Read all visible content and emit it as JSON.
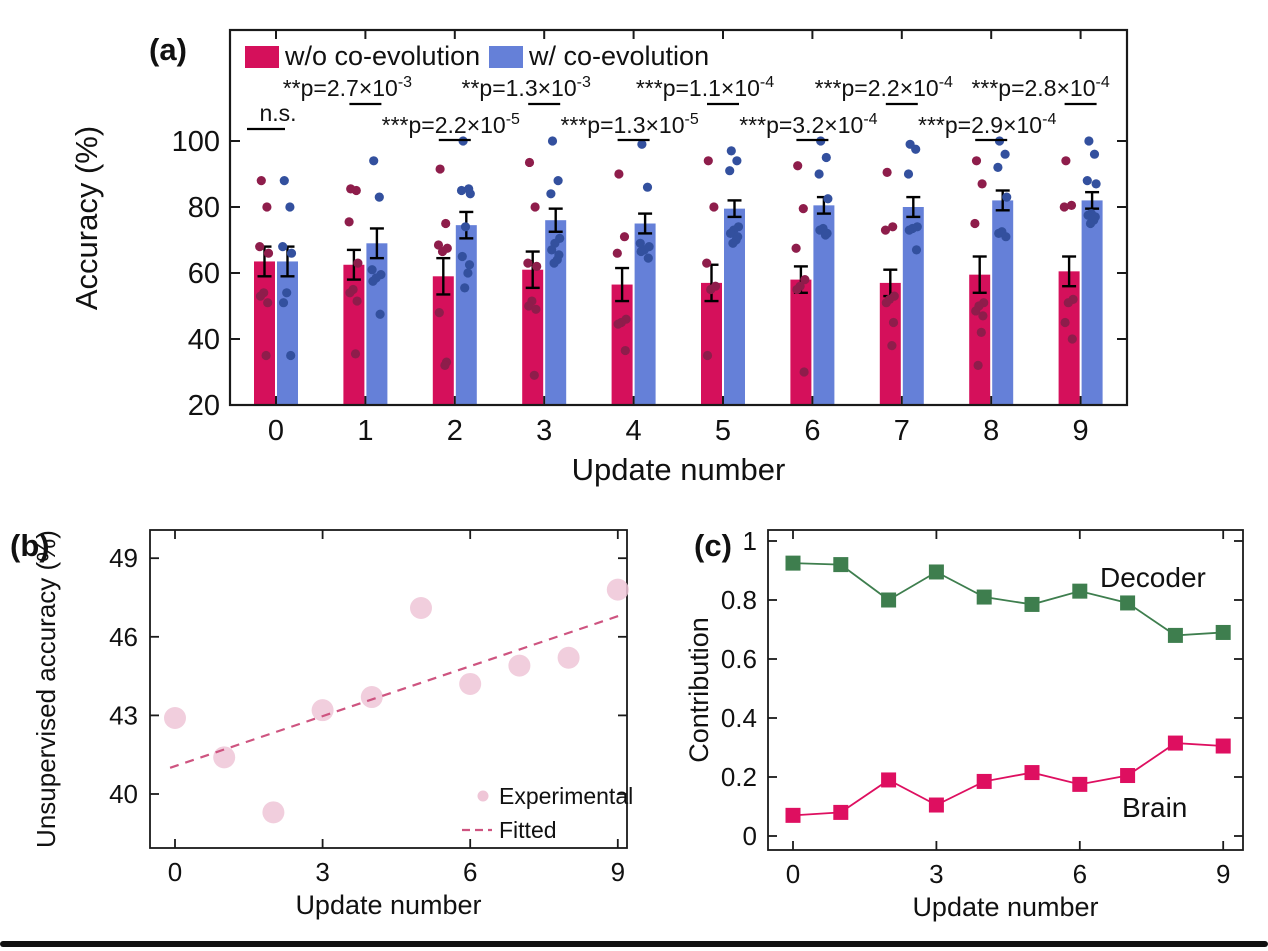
{
  "figure": {
    "panel_a_letter": "(a)",
    "panel_b_letter": "(b)",
    "panel_c_letter": "(c)"
  },
  "colors": {
    "bar_red": "#D5105B",
    "bar_blue": "#6580D8",
    "dot_red": "#8E1D4B",
    "dot_blue": "#33509E",
    "pink_point": "#EFC6D7",
    "fit_line": "#CE5480",
    "green": "#3E7E4E",
    "line_red": "#DE0F60",
    "axis": "#1a1a1a"
  },
  "chart_data": [
    {
      "id": "panel-a",
      "type": "bar",
      "xlabel": "Update number",
      "ylabel": "Accuracy (%)",
      "categories": [
        0,
        1,
        2,
        3,
        4,
        5,
        6,
        7,
        8,
        9
      ],
      "yticks": [
        20,
        40,
        60,
        80,
        100
      ],
      "ylim": [
        20,
        133
      ],
      "grid": false,
      "legend_position": "top-left-inside",
      "series": [
        {
          "name": "w/o co-evolution",
          "means": [
            63.5,
            62.5,
            59,
            61,
            56.5,
            57,
            58,
            57,
            59.5,
            60.5
          ],
          "errors": [
            4.5,
            4.5,
            5.5,
            5.5,
            5,
            5.5,
            4,
            4,
            5.5,
            4.5
          ],
          "points": [
            [
              88,
              80,
              68,
              66,
              54,
              53,
              51,
              35
            ],
            [
              85.5,
              85,
              75.5,
              63,
              55,
              54,
              51.5,
              35.5
            ],
            [
              91.5,
              75,
              68.5,
              67.5,
              66.5,
              48,
              33,
              32
            ],
            [
              93.5,
              80,
              63,
              62,
              51.5,
              50,
              49,
              29
            ],
            [
              90,
              71,
              66,
              46,
              45,
              44.5,
              36.5
            ],
            [
              94,
              80,
              63,
              56,
              55,
              35
            ],
            [
              92.5,
              79.5,
              67.5,
              58,
              56,
              55,
              30
            ],
            [
              90.5,
              74,
              73,
              53,
              52,
              51,
              45,
              38
            ],
            [
              94,
              87,
              75,
              51,
              50,
              48.5,
              47,
              42,
              32
            ],
            [
              94,
              80.5,
              80,
              52,
              51,
              45,
              40
            ]
          ]
        },
        {
          "name": "w/ co-evolution",
          "means": [
            63.5,
            69,
            74.5,
            76,
            75,
            79.5,
            80.5,
            80,
            82,
            82
          ],
          "errors": [
            4.5,
            4.5,
            4,
            3.5,
            3,
            2.5,
            2.5,
            3,
            3,
            2.5
          ],
          "points": [
            [
              88,
              80,
              68,
              66,
              54,
              51,
              35
            ],
            [
              94,
              83,
              61,
              59.5,
              58.5,
              57.5,
              47.5
            ],
            [
              100,
              85.5,
              85,
              84,
              74,
              65,
              62.5,
              60,
              55.5
            ],
            [
              100,
              88,
              84,
              70.5,
              69,
              67,
              65.5,
              64,
              63
            ],
            [
              99,
              86,
              69,
              68,
              67,
              66.5,
              64.5
            ],
            [
              97,
              94,
              91,
              74,
              73,
              72,
              71,
              70,
              69
            ],
            [
              100,
              95,
              90,
              82.5,
              73.5,
              73,
              72,
              71.5
            ],
            [
              99,
              97.5,
              90,
              74,
              73.5,
              73,
              67
            ],
            [
              100,
              96,
              92,
              83,
              72.5,
              72,
              71
            ],
            [
              100,
              96,
              88,
              87,
              78,
              77.5,
              77,
              76,
              75
            ]
          ]
        }
      ],
      "annotations": [
        {
          "group": 0,
          "label": "n.s.",
          "exp": "",
          "row": "ns"
        },
        {
          "group": 1,
          "label": "**p=2.7×10",
          "exp": "-3",
          "row": "high"
        },
        {
          "group": 2,
          "label": "***p=2.2×10",
          "exp": "-5",
          "row": "low"
        },
        {
          "group": 3,
          "label": "**p=1.3×10",
          "exp": "-3",
          "row": "high"
        },
        {
          "group": 4,
          "label": "***p=1.3×10",
          "exp": "-5",
          "row": "low"
        },
        {
          "group": 5,
          "label": "***p=1.1×10",
          "exp": "-4",
          "row": "high"
        },
        {
          "group": 6,
          "label": "***p=3.2×10",
          "exp": "-4",
          "row": "low"
        },
        {
          "group": 7,
          "label": "***p=2.2×10",
          "exp": "-4",
          "row": "high"
        },
        {
          "group": 8,
          "label": "***p=2.9×10",
          "exp": "-4",
          "row": "low"
        },
        {
          "group": 9,
          "label": "***p=2.8×10",
          "exp": "-4",
          "row": "high"
        }
      ]
    },
    {
      "id": "panel-b",
      "type": "scatter",
      "xlabel": "Update number",
      "ylabel": "Unsupervised accuracy (%)",
      "xticks": [
        0,
        3,
        6,
        9
      ],
      "yticks": [
        40,
        43,
        46,
        49
      ],
      "xlim": [
        -0.5,
        9.2
      ],
      "ylim": [
        37.9,
        50.1
      ],
      "grid": false,
      "legend_position": "bottom-right-inside",
      "series": [
        {
          "name": "Experimental",
          "marker": "circle",
          "x": [
            0,
            1,
            2,
            3,
            4,
            5,
            6,
            7,
            8,
            9
          ],
          "y": [
            42.9,
            41.4,
            39.3,
            43.2,
            43.7,
            47.1,
            44.2,
            44.9,
            45.2,
            47.8
          ]
        },
        {
          "name": "Fitted",
          "marker": "dashed-line",
          "fit": {
            "x0": -0.1,
            "y0": 41.0,
            "x1": 9.1,
            "y1": 46.85
          }
        }
      ]
    },
    {
      "id": "panel-c",
      "type": "line",
      "xlabel": "Update number",
      "ylabel": "Contribution",
      "xticks": [
        0,
        3,
        6,
        9
      ],
      "yticks": [
        0,
        0.2,
        0.4,
        0.6,
        0.8,
        1
      ],
      "xlim": [
        -0.5,
        9.5
      ],
      "ylim": [
        -0.05,
        1.04
      ],
      "grid": false,
      "series": [
        {
          "name": "Decoder",
          "x": [
            0,
            1,
            2,
            3,
            4,
            5,
            6,
            7,
            8,
            9
          ],
          "y": [
            0.925,
            0.92,
            0.8,
            0.895,
            0.81,
            0.785,
            0.83,
            0.79,
            0.68,
            0.69
          ]
        },
        {
          "name": "Brain",
          "x": [
            0,
            1,
            2,
            3,
            4,
            5,
            6,
            7,
            8,
            9
          ],
          "y": [
            0.07,
            0.08,
            0.19,
            0.105,
            0.185,
            0.215,
            0.175,
            0.205,
            0.315,
            0.305
          ]
        }
      ]
    }
  ]
}
